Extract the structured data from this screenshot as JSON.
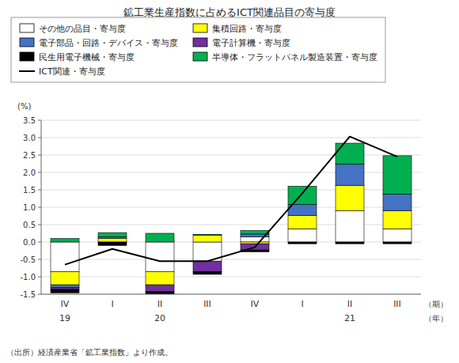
{
  "chart_data": {
    "type": "bar",
    "stacked": true,
    "title": "鉱工業生産指数に占めるICT関連品目の寄与度",
    "ylabel": "(%)",
    "period_label": "（期）",
    "year_label": "（年）",
    "source": "（出所）経済産業省「鉱工業指数」より作成。",
    "categories": [
      "IV",
      "I",
      "II",
      "III",
      "IV",
      "I",
      "II",
      "III"
    ],
    "annotations": [
      {
        "text": "19",
        "x": 0
      },
      {
        "text": "20",
        "x": 2
      },
      {
        "text": "21",
        "x": 6
      }
    ],
    "ylim": [
      -1.5,
      3.5
    ],
    "yticks": [
      -1.5,
      {
        "value": -1.0,
        "label": "-1.0"
      },
      -0.5,
      {
        "value": 0.0,
        "label": "0.0"
      },
      0.5,
      {
        "value": 1.0,
        "label": "1.0"
      },
      1.5,
      {
        "value": 2.0,
        "label": "2.0"
      },
      2.5,
      {
        "value": 3.0,
        "label": "3.0"
      },
      3.5
    ],
    "grid": true,
    "legend": "top",
    "series": [
      {
        "name": "その他の品目・寄与度",
        "color": "#ffffff",
        "values": [
          -0.85,
          0.0,
          -0.85,
          -0.55,
          0.15,
          0.38,
          0.9,
          0.38
        ]
      },
      {
        "name": "集積回路・寄与度",
        "color": "#ffff00",
        "values": [
          -0.38,
          0.1,
          -0.38,
          0.2,
          -0.05,
          0.38,
          0.72,
          0.52
        ]
      },
      {
        "name": "電子部品・回路・デバイス・寄与度",
        "color": "#4472c4",
        "values": [
          -0.08,
          0.05,
          0.0,
          0.0,
          0.08,
          0.32,
          0.62,
          0.48
        ]
      },
      {
        "name": "電子計算機・寄与度",
        "color": "#7030a0",
        "values": [
          -0.05,
          -0.02,
          -0.2,
          -0.3,
          -0.18,
          0.0,
          0.0,
          0.0
        ]
      },
      {
        "name": "民生用電子機械・寄与度",
        "color": "#000000",
        "values": [
          -0.1,
          -0.08,
          -0.08,
          -0.08,
          -0.05,
          -0.05,
          -0.05,
          -0.05
        ]
      },
      {
        "name": "半導体・フラットパネル製造装置・寄与度",
        "color": "#00b050",
        "values": [
          0.1,
          0.12,
          0.25,
          0.02,
          0.1,
          0.52,
          0.6,
          1.1
        ]
      },
      {
        "name": "ICT関連・寄与度",
        "type": "line",
        "color": "#000000",
        "values": [
          -0.65,
          -0.2,
          -0.55,
          -0.55,
          -0.15,
          1.4,
          3.03,
          2.45
        ]
      }
    ]
  }
}
